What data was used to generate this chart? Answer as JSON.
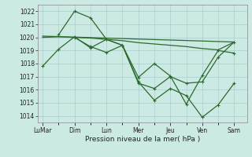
{
  "background_color": "#cceae4",
  "grid_color": "#aacccc",
  "line_color": "#2d6a2d",
  "marker_color": "#2d6a2d",
  "xlabel": "Pression niveau de la mer( hPa )",
  "ylim": [
    1013.5,
    1022.5
  ],
  "yticks": [
    1014,
    1015,
    1016,
    1017,
    1018,
    1019,
    1020,
    1021,
    1022
  ],
  "x_tick_labels": [
    "LuMar",
    "Dim",
    "Lun",
    "Mer",
    "Jeu",
    "Ven",
    "Sam"
  ],
  "x_tick_positions": [
    0,
    2,
    4,
    6,
    8,
    10,
    12
  ],
  "xlim": [
    -0.3,
    12.8
  ],
  "line1_nodots": {
    "x": [
      0,
      1,
      2,
      3,
      4,
      5,
      6,
      7,
      8,
      9,
      10,
      11,
      12
    ],
    "y": [
      1020.0,
      1020.05,
      1020.0,
      1019.95,
      1019.85,
      1019.75,
      1019.6,
      1019.5,
      1019.4,
      1019.3,
      1019.15,
      1019.05,
      1019.65
    ]
  },
  "line2_nodots": {
    "x": [
      0,
      12
    ],
    "y": [
      1020.1,
      1019.65
    ]
  },
  "line3_dots": {
    "x": [
      0,
      1,
      2,
      3,
      4,
      5,
      6,
      7,
      8,
      9,
      10,
      11,
      12
    ],
    "y": [
      1017.8,
      1019.1,
      1020.05,
      1019.2,
      1019.85,
      1019.4,
      1016.5,
      1016.1,
      1017.0,
      1016.5,
      1016.6,
      1018.5,
      1019.65
    ]
  },
  "line4_dots": {
    "x": [
      1,
      2,
      3,
      4,
      5,
      6,
      7,
      8,
      9,
      10,
      11,
      12
    ],
    "y": [
      1020.2,
      1022.0,
      1021.5,
      1019.85,
      1019.4,
      1016.6,
      1015.2,
      1016.1,
      1015.55,
      1013.9,
      1014.85,
      1016.5
    ]
  },
  "line5_dots": {
    "x": [
      2,
      3,
      4,
      5,
      6,
      7,
      8,
      9,
      10,
      11,
      12
    ],
    "y": [
      1020.0,
      1019.3,
      1018.85,
      1019.4,
      1016.95,
      1018.0,
      1017.05,
      1014.9,
      1017.1,
      1019.0,
      1018.8
    ]
  }
}
